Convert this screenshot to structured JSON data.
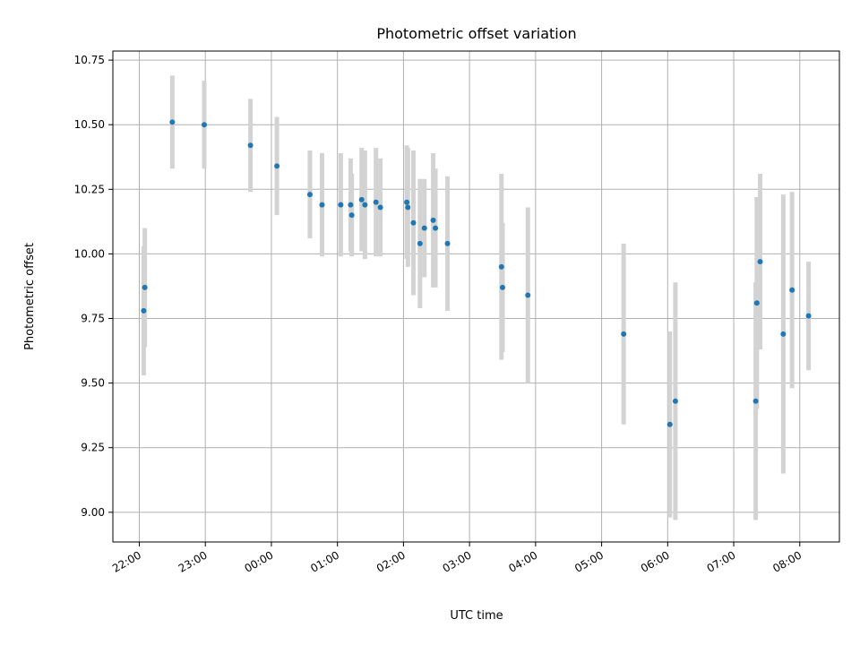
{
  "colors": {
    "point": "#1f77b4",
    "errorbar": "#d3d3d3",
    "grid": "#b0b0b0",
    "axis": "#000000",
    "background": "#ffffff"
  },
  "chart_data": {
    "type": "scatter",
    "title": "Photometric offset variation",
    "xlabel": "UTC time",
    "ylabel": "Photometric offset",
    "grid": true,
    "xlim": [
      "21:36",
      "08:36"
    ],
    "ylim": [
      8.885,
      10.785
    ],
    "x_ticks": [
      "22:00",
      "23:00",
      "00:00",
      "01:00",
      "02:00",
      "03:00",
      "04:00",
      "05:00",
      "06:00",
      "07:00",
      "08:00"
    ],
    "y_ticks": [
      "9.00",
      "9.25",
      "9.50",
      "9.75",
      "10.00",
      "10.25",
      "10.50",
      "10.75"
    ],
    "series": [
      {
        "error_bars": true,
        "points": [
          {
            "x": "22:04",
            "y": 9.78,
            "err": 0.25
          },
          {
            "x": "22:05",
            "y": 9.87,
            "err": 0.23
          },
          {
            "x": "22:30",
            "y": 10.51,
            "err": 0.18
          },
          {
            "x": "22:59",
            "y": 10.5,
            "err": 0.17
          },
          {
            "x": "23:41",
            "y": 10.42,
            "err": 0.18
          },
          {
            "x": "00:05",
            "y": 10.34,
            "err": 0.19
          },
          {
            "x": "00:35",
            "y": 10.23,
            "err": 0.17
          },
          {
            "x": "00:46",
            "y": 10.19,
            "err": 0.2
          },
          {
            "x": "01:03",
            "y": 10.19,
            "err": 0.2
          },
          {
            "x": "01:12",
            "y": 10.19,
            "err": 0.18
          },
          {
            "x": "01:13",
            "y": 10.15,
            "err": 0.16
          },
          {
            "x": "01:22",
            "y": 10.21,
            "err": 0.2
          },
          {
            "x": "01:25",
            "y": 10.19,
            "err": 0.21
          },
          {
            "x": "01:35",
            "y": 10.2,
            "err": 0.21
          },
          {
            "x": "01:39",
            "y": 10.18,
            "err": 0.19
          },
          {
            "x": "02:03",
            "y": 10.2,
            "err": 0.22
          },
          {
            "x": "02:04",
            "y": 10.18,
            "err": 0.23
          },
          {
            "x": "02:09",
            "y": 10.12,
            "err": 0.28
          },
          {
            "x": "02:15",
            "y": 10.04,
            "err": 0.25
          },
          {
            "x": "02:19",
            "y": 10.1,
            "err": 0.19
          },
          {
            "x": "02:27",
            "y": 10.13,
            "err": 0.26
          },
          {
            "x": "02:29",
            "y": 10.1,
            "err": 0.23
          },
          {
            "x": "02:40",
            "y": 10.04,
            "err": 0.26
          },
          {
            "x": "03:29",
            "y": 9.95,
            "err": 0.36
          },
          {
            "x": "03:30",
            "y": 9.87,
            "err": 0.25
          },
          {
            "x": "03:53",
            "y": 9.84,
            "err": 0.34
          },
          {
            "x": "05:20",
            "y": 9.69,
            "err": 0.35
          },
          {
            "x": "06:02",
            "y": 9.34,
            "err": 0.36
          },
          {
            "x": "06:07",
            "y": 9.43,
            "err": 0.46
          },
          {
            "x": "07:20",
            "y": 9.43,
            "err": 0.46
          },
          {
            "x": "07:21",
            "y": 9.81,
            "err": 0.41
          },
          {
            "x": "07:24",
            "y": 9.97,
            "err": 0.34
          },
          {
            "x": "07:45",
            "y": 9.69,
            "err": 0.54
          },
          {
            "x": "07:53",
            "y": 9.86,
            "err": 0.38
          },
          {
            "x": "08:08",
            "y": 9.76,
            "err": 0.21
          }
        ]
      }
    ]
  }
}
